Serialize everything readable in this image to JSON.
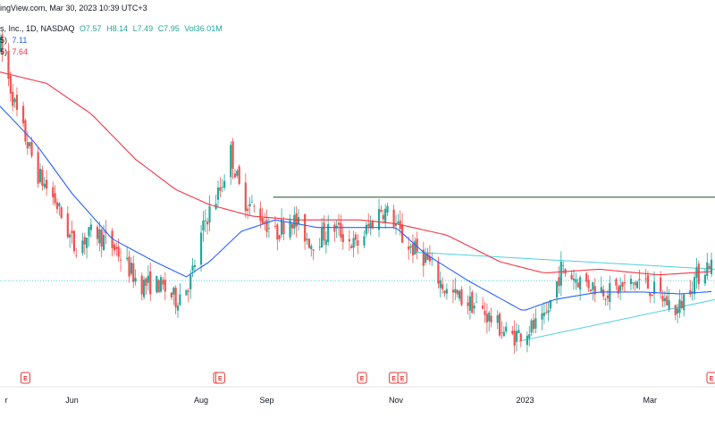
{
  "header": {
    "source_line": "ingView.com, Mar 30, 2023 10:39 UTC+3",
    "symbol_line": "s, Inc., 1D, NASDAQ",
    "ohlc": {
      "o": "O7.57",
      "h": "H8.14",
      "l": "L7.49",
      "c": "C7.95",
      "vol": "Vol36.01M"
    },
    "ma1": {
      "label": "5)",
      "value": "7.11"
    },
    "ma2": {
      "label": "5)",
      "value": "7.64"
    }
  },
  "colors": {
    "up": "#26a69a",
    "down": "#ef5350",
    "ma_fast": "#2962ff",
    "ma_slow": "#f23645",
    "resistance": "#1e4d2b",
    "trendline": "#4dd0e1",
    "earnings": "#e53935"
  },
  "chart_data": {
    "type": "candlestick",
    "x_axis": {
      "ticks": [
        {
          "label": "r",
          "date": "2022-05-01"
        },
        {
          "label": "Jun",
          "date": "2022-06-01"
        },
        {
          "label": "Aug",
          "date": "2022-08-01"
        },
        {
          "label": "Sep",
          "date": "2022-09-01"
        },
        {
          "label": "Nov",
          "date": "2022-11-01"
        },
        {
          "label": "2023",
          "date": "2023-01-01"
        },
        {
          "label": "Mar",
          "date": "2023-03-01"
        }
      ]
    },
    "range": {
      "start": "2022-04-28",
      "end": "2023-03-30"
    },
    "ylim": [
      4.6,
      14.8
    ],
    "price_anchors": [
      [
        "2022-04-28",
        13.6
      ],
      [
        "2022-05-06",
        11.8
      ],
      [
        "2022-05-16",
        10.2
      ],
      [
        "2022-05-24",
        9.5
      ],
      [
        "2022-06-02",
        8.3
      ],
      [
        "2022-06-12",
        8.7
      ],
      [
        "2022-06-22",
        8.2
      ],
      [
        "2022-07-03",
        7.3
      ],
      [
        "2022-07-12",
        7.3
      ],
      [
        "2022-07-20",
        6.9
      ],
      [
        "2022-07-27",
        7.4
      ],
      [
        "2022-08-03",
        9.0
      ],
      [
        "2022-08-10",
        9.8
      ],
      [
        "2022-08-15",
        10.8
      ],
      [
        "2022-08-20",
        9.6
      ],
      [
        "2022-08-28",
        9.2
      ],
      [
        "2022-09-05",
        8.6
      ],
      [
        "2022-09-12",
        9.1
      ],
      [
        "2022-09-22",
        8.4
      ],
      [
        "2022-10-03",
        8.8
      ],
      [
        "2022-10-13",
        8.3
      ],
      [
        "2022-10-25",
        9.3
      ],
      [
        "2022-10-30",
        9.1
      ],
      [
        "2022-11-05",
        8.4
      ],
      [
        "2022-11-15",
        8.0
      ],
      [
        "2022-11-25",
        7.1
      ],
      [
        "2022-12-10",
        6.7
      ],
      [
        "2022-12-25",
        5.9
      ],
      [
        "2023-01-10",
        6.3
      ],
      [
        "2023-01-18",
        7.7
      ],
      [
        "2023-01-27",
        7.4
      ],
      [
        "2023-02-10",
        7.1
      ],
      [
        "2023-02-25",
        7.4
      ],
      [
        "2023-03-14",
        6.6
      ],
      [
        "2023-03-20",
        7.3
      ],
      [
        "2023-03-30",
        7.95
      ]
    ],
    "candle_seed": 7,
    "moving_averages": [
      {
        "value": "7.11",
        "points": [
          [
            "2022-04-28",
            12.0
          ],
          [
            "2022-05-15",
            11.0
          ],
          [
            "2022-06-01",
            9.7
          ],
          [
            "2022-06-20",
            8.5
          ],
          [
            "2022-07-10",
            7.9
          ],
          [
            "2022-07-25",
            7.5
          ],
          [
            "2022-08-05",
            7.9
          ],
          [
            "2022-08-20",
            8.7
          ],
          [
            "2022-09-05",
            9.0
          ],
          [
            "2022-09-25",
            8.8
          ],
          [
            "2022-10-15",
            8.8
          ],
          [
            "2022-11-01",
            8.8
          ],
          [
            "2022-11-15",
            8.1
          ],
          [
            "2022-12-05",
            7.4
          ],
          [
            "2022-12-31",
            6.6
          ],
          [
            "2023-01-15",
            6.9
          ],
          [
            "2023-02-05",
            7.1
          ],
          [
            "2023-02-25",
            7.1
          ],
          [
            "2023-03-15",
            7.05
          ],
          [
            "2023-03-30",
            7.11
          ]
        ]
      },
      {
        "value": "7.64",
        "points": [
          [
            "2022-04-28",
            12.9
          ],
          [
            "2022-05-20",
            12.6
          ],
          [
            "2022-06-10",
            11.8
          ],
          [
            "2022-07-01",
            10.6
          ],
          [
            "2022-07-20",
            9.8
          ],
          [
            "2022-08-05",
            9.4
          ],
          [
            "2022-08-25",
            9.1
          ],
          [
            "2022-09-15",
            9.0
          ],
          [
            "2022-10-15",
            9.0
          ],
          [
            "2022-11-01",
            8.9
          ],
          [
            "2022-11-25",
            8.6
          ],
          [
            "2022-12-20",
            7.9
          ],
          [
            "2023-01-10",
            7.6
          ],
          [
            "2023-02-05",
            7.7
          ],
          [
            "2023-03-05",
            7.55
          ],
          [
            "2023-03-30",
            7.64
          ]
        ]
      }
    ],
    "drawings": {
      "resistance": {
        "from": [
          "2022-09-04",
          9.6
        ],
        "to": [
          "2023-03-30",
          9.6
        ]
      },
      "upper_trendline": {
        "from": [
          "2022-11-10",
          8.15
        ],
        "to": [
          "2023-03-30",
          7.7
        ]
      },
      "lower_trendline": {
        "from": [
          "2022-12-29",
          5.8
        ],
        "to": [
          "2023-03-30",
          6.9
        ]
      },
      "dotted_level": 7.4
    },
    "earnings": {
      "label": "E",
      "dates": [
        "2022-05-10",
        "2022-08-09",
        "2022-08-10",
        "2022-10-16",
        "2022-10-31",
        "2022-11-04",
        "2023-03-30"
      ]
    }
  }
}
